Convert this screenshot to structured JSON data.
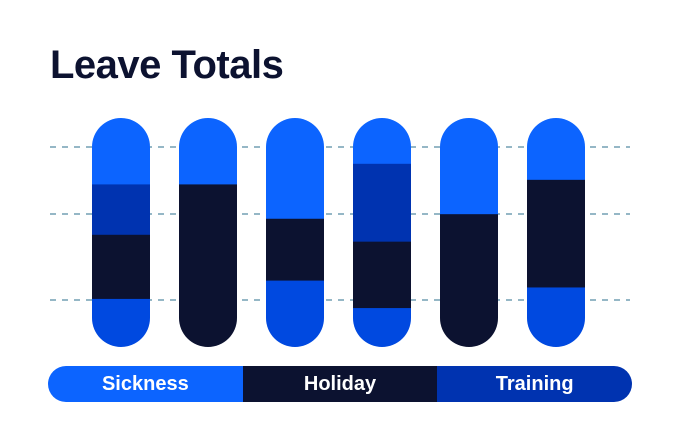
{
  "colors": {
    "sickness": "#0c64ff",
    "holiday": "#0c1230",
    "training": "#0033b0",
    "other": "#0049e0",
    "gridline": "#2b6f8c"
  },
  "chart_data": {
    "type": "bar",
    "title": "Leave Totals",
    "stacked": true,
    "orientation": "vertical",
    "grid": true,
    "categories": [
      "",
      "",
      "",
      "",
      "",
      ""
    ],
    "segments_top_to_bottom": [
      [
        {
          "series": "Sickness",
          "value": 0.29
        },
        {
          "series": "Training",
          "value": 0.22
        },
        {
          "series": "Holiday",
          "value": 0.28
        },
        {
          "series": "",
          "value": 0.21
        }
      ],
      [
        {
          "series": "Sickness",
          "value": 0.29
        },
        {
          "series": "Holiday",
          "value": 0.71
        }
      ],
      [
        {
          "series": "Sickness",
          "value": 0.44
        },
        {
          "series": "Holiday",
          "value": 0.27
        },
        {
          "series": "",
          "value": 0.29
        }
      ],
      [
        {
          "series": "Sickness",
          "value": 0.2
        },
        {
          "series": "Training",
          "value": 0.34
        },
        {
          "series": "Holiday",
          "value": 0.29
        },
        {
          "series": "",
          "value": 0.17
        }
      ],
      [
        {
          "series": "Sickness",
          "value": 0.42
        },
        {
          "series": "Holiday",
          "value": 0.58
        }
      ],
      [
        {
          "series": "Sickness",
          "value": 0.27
        },
        {
          "series": "Holiday",
          "value": 0.47
        },
        {
          "series": "",
          "value": 0.26
        }
      ]
    ],
    "legend": {
      "position": "bottom",
      "items": [
        {
          "label": "Sickness",
          "color": "#0c64ff"
        },
        {
          "label": "Holiday",
          "color": "#0c1230"
        },
        {
          "label": "Training",
          "color": "#0033b0"
        }
      ]
    }
  }
}
